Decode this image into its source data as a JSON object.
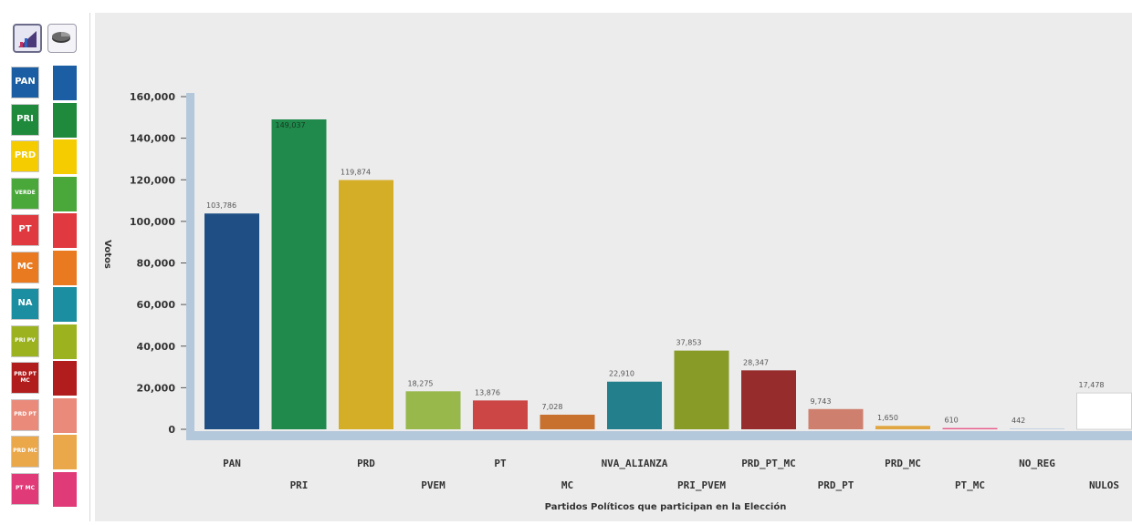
{
  "chart_data": {
    "type": "bar",
    "xlabel": "Partidos Políticos que participan en la Elección",
    "ylabel": "Votos",
    "ylim": [
      0,
      160000
    ],
    "yticks": [
      0,
      20000,
      40000,
      60000,
      80000,
      100000,
      120000,
      140000,
      160000
    ],
    "ytick_labels": [
      "0",
      "20,000",
      "40,000",
      "60,000",
      "80,000",
      "100,000",
      "120,000",
      "140,000",
      "160,000"
    ],
    "grid": false,
    "categories": [
      "PAN",
      "PRI",
      "PRD",
      "PVEM",
      "PT",
      "MC",
      "NVA_ALIANZA",
      "PRI_PVEM",
      "PRD_PT_MC",
      "PRD_PT",
      "PRD_MC",
      "PT_MC",
      "NO_REG",
      "NULOS"
    ],
    "values": [
      103786,
      149037,
      119874,
      18275,
      13876,
      7028,
      22910,
      37853,
      28347,
      9743,
      1650,
      610,
      442,
      17478
    ],
    "value_labels": [
      "103,786",
      "149,037",
      "119,874",
      "18,275",
      "13,876",
      "7,028",
      "22,910",
      "37,853",
      "28,347",
      "9,743",
      "1,650",
      "610",
      "442",
      "17,478"
    ],
    "colors": [
      "#1f4e85",
      "#1f8a4c",
      "#d4ae27",
      "#98b84c",
      "#cc4646",
      "#c8712f",
      "#237f8c",
      "#879b26",
      "#962c2c",
      "#cf7f6e",
      "#e2a640",
      "#e8598a",
      "#c4d2e2",
      "#ffffff"
    ]
  },
  "toolbar": {
    "bar_chart_icon": "bar-chart-icon",
    "pie_chart_icon": "pie-chart-icon"
  },
  "legend": [
    {
      "logo": "PAN",
      "icon": "pan-logo-icon",
      "color": "#1b5ea3"
    },
    {
      "logo": "PRI",
      "icon": "pri-logo-icon",
      "color": "#1f8a3c"
    },
    {
      "logo": "PRD",
      "icon": "prd-logo-icon",
      "color": "#f5cc00"
    },
    {
      "logo": "VERDE",
      "icon": "pvem-logo-icon",
      "color": "#4aa83a"
    },
    {
      "logo": "PT",
      "icon": "pt-logo-icon",
      "color": "#e0393f"
    },
    {
      "logo": "MC",
      "icon": "mc-logo-icon",
      "color": "#e97a1f"
    },
    {
      "logo": "NA",
      "icon": "na-logo-icon",
      "color": "#1b8ea1"
    },
    {
      "logo": "PRI PV",
      "icon": "pri-pvem-logo-icon",
      "color": "#9cb31f"
    },
    {
      "logo": "PRD PT MC",
      "icon": "prd-pt-mc-logo-icon",
      "color": "#b11c1c"
    },
    {
      "logo": "PRD PT",
      "icon": "prd-pt-logo-icon",
      "color": "#ea8a7a"
    },
    {
      "logo": "PRD MC",
      "icon": "prd-mc-logo-icon",
      "color": "#eba84a"
    },
    {
      "logo": "PT MC",
      "icon": "pt-mc-logo-icon",
      "color": "#e03a78"
    }
  ]
}
